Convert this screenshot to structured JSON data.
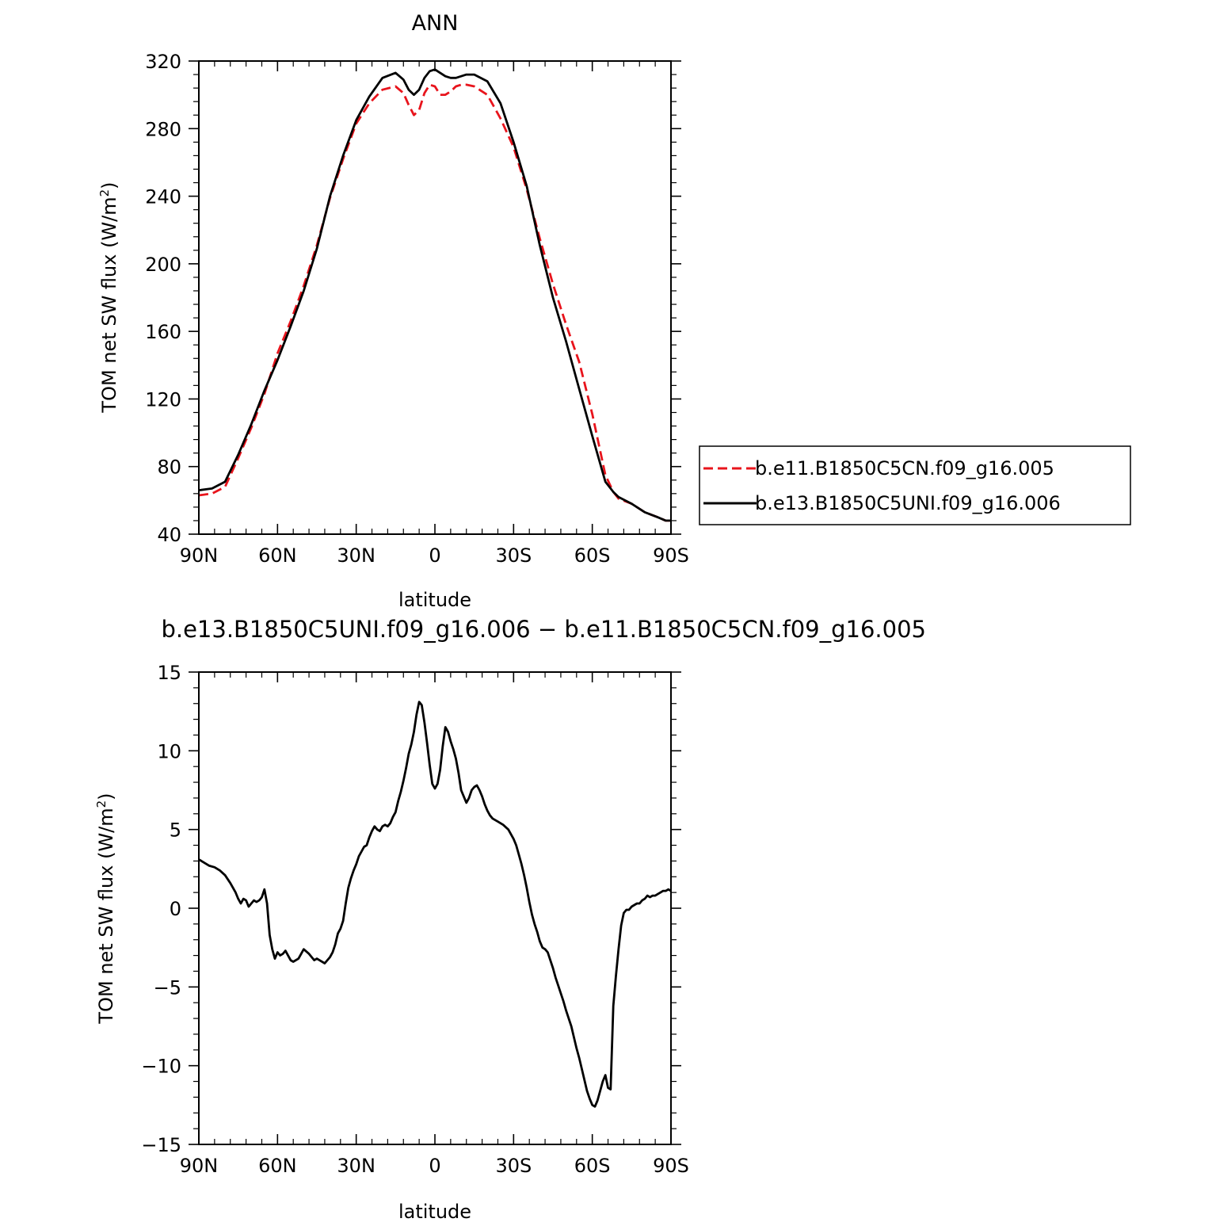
{
  "chart_data": [
    {
      "type": "line",
      "title": "ANN",
      "xlabel": "latitude",
      "ylabel": "TOM net SW flux (W/m",
      "ylabel_sup": "2",
      "ylabel_close": ")",
      "xlim": [
        90,
        -90
      ],
      "ylim": [
        40,
        320
      ],
      "x_ticks": [
        90,
        60,
        30,
        0,
        -30,
        -60,
        -90
      ],
      "x_tick_labels": [
        "90N",
        "60N",
        "30N",
        "0",
        "30S",
        "60S",
        "90S"
      ],
      "y_ticks": [
        40,
        80,
        120,
        160,
        200,
        240,
        280,
        320
      ],
      "y_tick_labels": [
        "40",
        "80",
        "120",
        "160",
        "200",
        "240",
        "280",
        "320"
      ],
      "legend_position": "right",
      "series": [
        {
          "name": "b.e11.B1850C5CN.f09_g16.005",
          "color": "#e8141c",
          "dash": "dashed",
          "x": [
            90,
            85,
            80,
            75,
            70,
            65,
            60,
            55,
            50,
            45,
            40,
            35,
            30,
            25,
            20,
            15,
            12,
            10,
            8,
            6,
            4,
            2,
            0,
            -2,
            -4,
            -6,
            -8,
            -10,
            -12,
            -15,
            -20,
            -25,
            -30,
            -35,
            -40,
            -45,
            -50,
            -55,
            -60,
            -65,
            -68,
            -70,
            -75,
            -80,
            -85,
            -88,
            -90
          ],
          "y": [
            63,
            64,
            68,
            85,
            103,
            123,
            147,
            166,
            187,
            211,
            239,
            262,
            283,
            295,
            303,
            305,
            301,
            294,
            288,
            291,
            301,
            306,
            305,
            300,
            300,
            302,
            305,
            306,
            306,
            305,
            300,
            286,
            269,
            244,
            215,
            188,
            164,
            142,
            111,
            75,
            65,
            61,
            58,
            53,
            50,
            48,
            48
          ]
        },
        {
          "name": "b.e13.B1850C5UNI.f09_g16.006",
          "color": "#000000",
          "dash": "solid",
          "x": [
            90,
            85,
            80,
            75,
            70,
            65,
            60,
            55,
            50,
            45,
            40,
            35,
            30,
            25,
            20,
            15,
            12,
            10,
            8,
            6,
            4,
            2,
            0,
            -2,
            -4,
            -6,
            -8,
            -10,
            -12,
            -15,
            -20,
            -25,
            -30,
            -35,
            -40,
            -45,
            -50,
            -55,
            -60,
            -65,
            -68,
            -70,
            -75,
            -80,
            -85,
            -88,
            -90
          ],
          "y": [
            66,
            67,
            71,
            87,
            105,
            125,
            143,
            163,
            184,
            209,
            240,
            264,
            285,
            299,
            310,
            313,
            309,
            303,
            300,
            303,
            310,
            314,
            315,
            313,
            311,
            310,
            310,
            311,
            312,
            312,
            308,
            295,
            272,
            246,
            211,
            180,
            154,
            126,
            98,
            71,
            65,
            62,
            58,
            53,
            50,
            48,
            48
          ]
        }
      ]
    },
    {
      "type": "line",
      "title": "b.e13.B1850C5UNI.f09_g16.006 − b.e11.B1850C5CN.f09_g16.005",
      "xlabel": "latitude",
      "ylabel": "TOM net SW flux (W/m",
      "ylabel_sup": "2",
      "ylabel_close": ")",
      "xlim": [
        90,
        -90
      ],
      "ylim": [
        -15,
        15
      ],
      "x_ticks": [
        90,
        60,
        30,
        0,
        -30,
        -60,
        -90
      ],
      "x_tick_labels": [
        "90N",
        "60N",
        "30N",
        "0",
        "30S",
        "60S",
        "90S"
      ],
      "y_ticks": [
        -15,
        -10,
        -5,
        0,
        5,
        10,
        15
      ],
      "y_tick_labels": [
        "−15",
        "−10",
        "−5",
        "0",
        "5",
        "10",
        "15"
      ],
      "series": [
        {
          "color": "#000000",
          "dash": "solid",
          "x": [
            90,
            88,
            86,
            84,
            82,
            80,
            78,
            76,
            75,
            74,
            73,
            72,
            71,
            70,
            69,
            68,
            67,
            66,
            65,
            64,
            63,
            62,
            61,
            60,
            59,
            58,
            57,
            56,
            55,
            54,
            52,
            50,
            48,
            47,
            46,
            45,
            44,
            42,
            41,
            40,
            39,
            38,
            37,
            36,
            35,
            34,
            33,
            32,
            31,
            30,
            29,
            28,
            27,
            26,
            25,
            24,
            23,
            22,
            21,
            20,
            19,
            18,
            17,
            16,
            15,
            14,
            13,
            12,
            11,
            10,
            9,
            8,
            7,
            6,
            5,
            4,
            3,
            2,
            1,
            0,
            -1,
            -2,
            -3,
            -4,
            -5,
            -6,
            -7,
            -8,
            -9,
            -10,
            -11,
            -12,
            -13,
            -14,
            -15,
            -16,
            -17,
            -18,
            -19,
            -20,
            -21,
            -22,
            -24,
            -26,
            -28,
            -30,
            -31,
            -32,
            -33,
            -34,
            -35,
            -36,
            -37,
            -38,
            -39,
            -40,
            -41,
            -42,
            -43,
            -44,
            -45,
            -46,
            -47,
            -48,
            -49,
            -50,
            -51,
            -52,
            -53,
            -54,
            -55,
            -56,
            -57,
            -58,
            -59,
            -60,
            -61,
            -62,
            -63,
            -64,
            -65,
            -66,
            -67,
            -68,
            -69,
            -70,
            -71,
            -72,
            -73,
            -74,
            -75,
            -76,
            -77,
            -78,
            -79,
            -80,
            -81,
            -82,
            -83,
            -84,
            -85,
            -86,
            -87,
            -88,
            -89,
            -90
          ],
          "y": [
            3.1,
            2.9,
            2.7,
            2.6,
            2.4,
            2.1,
            1.6,
            1.0,
            0.6,
            0.3,
            0.6,
            0.5,
            0.1,
            0.3,
            0.5,
            0.4,
            0.5,
            0.7,
            1.2,
            0.3,
            -1.7,
            -2.6,
            -3.2,
            -2.8,
            -3.0,
            -2.9,
            -2.7,
            -3.0,
            -3.3,
            -3.4,
            -3.2,
            -2.6,
            -2.9,
            -3.1,
            -3.3,
            -3.2,
            -3.3,
            -3.5,
            -3.3,
            -3.1,
            -2.8,
            -2.3,
            -1.6,
            -1.3,
            -0.8,
            0.3,
            1.3,
            1.9,
            2.4,
            2.8,
            3.3,
            3.6,
            3.9,
            4.0,
            4.5,
            4.9,
            5.2,
            5.0,
            4.9,
            5.2,
            5.3,
            5.2,
            5.4,
            5.8,
            6.1,
            6.8,
            7.4,
            8.1,
            8.9,
            9.8,
            10.4,
            11.2,
            12.3,
            13.1,
            12.9,
            11.8,
            10.5,
            9.1,
            7.9,
            7.6,
            7.9,
            8.8,
            10.3,
            11.5,
            11.2,
            10.6,
            10.1,
            9.5,
            8.6,
            7.5,
            7.1,
            6.7,
            7.0,
            7.5,
            7.7,
            7.8,
            7.5,
            7.1,
            6.6,
            6.2,
            5.9,
            5.7,
            5.5,
            5.3,
            5.0,
            4.4,
            4.0,
            3.4,
            2.8,
            2.1,
            1.3,
            0.4,
            -0.4,
            -1.0,
            -1.5,
            -2.1,
            -2.5,
            -2.6,
            -2.8,
            -3.3,
            -3.8,
            -4.4,
            -4.9,
            -5.4,
            -5.9,
            -6.5,
            -7.0,
            -7.5,
            -8.2,
            -8.9,
            -9.5,
            -10.2,
            -10.9,
            -11.6,
            -12.1,
            -12.5,
            -12.6,
            -12.2,
            -11.6,
            -11.0,
            -10.6,
            -11.4,
            -11.5,
            -6.2,
            -4.3,
            -2.6,
            -1.1,
            -0.3,
            -0.1,
            -0.1,
            0.1,
            0.2,
            0.3,
            0.3,
            0.5,
            0.6,
            0.8,
            0.7,
            0.8,
            0.8,
            0.9,
            1.0,
            1.1,
            1.1,
            1.2,
            1.1
          ]
        }
      ]
    }
  ]
}
